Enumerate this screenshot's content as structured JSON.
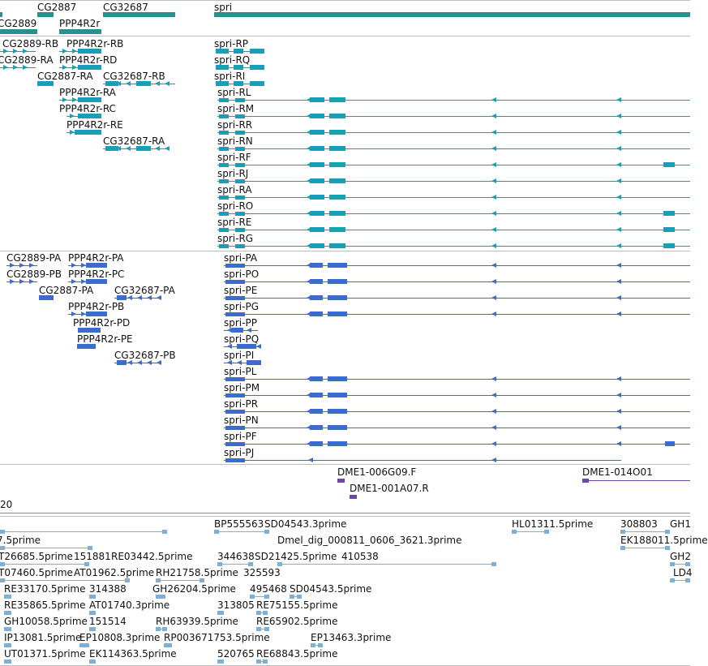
{
  "colors": {
    "gene": "#2a8f8f",
    "transcript_annot": "#199eb9",
    "transcript_pred": "#3c6bd0",
    "clone": "#6e48a8",
    "est": "#7bb0dc",
    "separator": "#bdbdbd"
  },
  "genes": [
    "CG2889",
    "CG2887",
    "PPP4R2r",
    "CG32687",
    "spri"
  ],
  "annotated_transcripts": [
    "CG2889-RB",
    "PPP4R2r-RB",
    "spri-RP",
    "CG2889-RA",
    "PPP4R2r-RD",
    "spri-RQ",
    "CG2887-RA",
    "CG32687-RB",
    "spri-RI",
    "PPP4R2r-RA",
    "spri-RL",
    "PPP4R2r-RC",
    "spri-RM",
    "PPP4R2r-RE",
    "spri-RR",
    "CG32687-RA",
    "spri-RN",
    "spri-RF",
    "spri-RJ",
    "spri-RA",
    "spri-RO",
    "spri-RE",
    "spri-RG"
  ],
  "predicted_transcripts": [
    "CG2889-PA",
    "PPP4R2r-PA",
    "spri-PA",
    "CG2889-PB",
    "PPP4R2r-PC",
    "spri-PO",
    "CG2887-PA",
    "CG32687-PA",
    "spri-PE",
    "PPP4R2r-PB",
    "spri-PG",
    "PPP4R2r-PD",
    "spri-PP",
    "PPP4R2r-PE",
    "spri-PQ",
    "CG32687-PB",
    "spri-PI",
    "spri-PL",
    "spri-PM",
    "spri-PR",
    "spri-PN",
    "spri-PF",
    "spri-PJ"
  ],
  "clones": [
    "DME1-006G09.F",
    "DME1-014O01",
    "DME1-001A07.R",
    "20"
  ],
  "ests": [
    "7.5prime",
    "BP555563",
    "SD04543.3prime",
    "HL01311.5prime",
    "308803",
    "GH1",
    "Dmel_dig_000811_0606_3621.3prime",
    "EK188011.5prime",
    "T26685.5prime",
    "151881",
    "RE03442.5prime",
    "344638",
    "SD21425.5prime",
    "410538",
    "GH2",
    "T07460.5prime",
    "AT01962.5prime",
    "RH21758.5prime",
    "325593",
    "LD4",
    "RE33170.5prime",
    "314388",
    "GH26204.5prime",
    "495468",
    "SD04543.5prime",
    "RE35865.5prime",
    "AT01740.3prime",
    "313805",
    "RE75155.5prime",
    "GH10058.5prime",
    "151514",
    "RH63939.5prime",
    "RE65902.5prime",
    "IP13081.5prime",
    "EP10808.3prime",
    "RP003671753.5prime",
    "EP13463.3prime",
    "UT01371.5prime",
    "EK114363.5prime",
    "520765",
    "RE68843.5prime"
  ]
}
